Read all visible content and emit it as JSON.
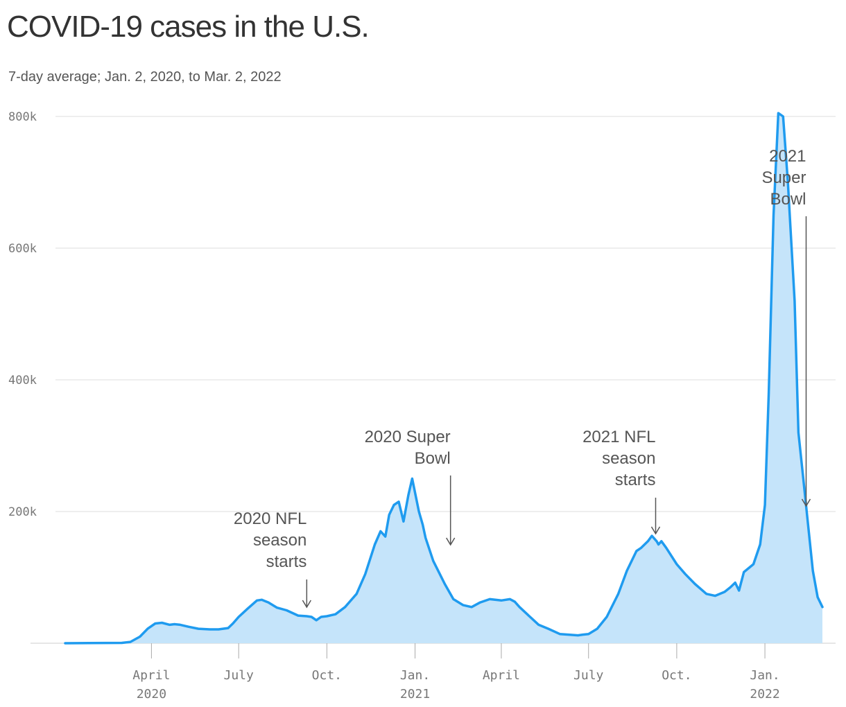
{
  "title": "COVID-19 cases in the U.S.",
  "subtitle": "7-day average; Jan. 2, 2020, to Mar. 2, 2022",
  "colors": {
    "line": "#1f9bef",
    "fill": "#c5e4fa",
    "grid": "#dddddd",
    "text": "#333333"
  },
  "chart_data": {
    "type": "area",
    "ylim": [
      0,
      800000
    ],
    "yticks": [
      {
        "value": 200000,
        "label": "200k"
      },
      {
        "value": 400000,
        "label": "400k"
      },
      {
        "value": 600000,
        "label": "600k"
      },
      {
        "value": 800000,
        "label": "800k"
      }
    ],
    "xticks": [
      {
        "date": "2020-04-01",
        "label": "April",
        "year": "2020"
      },
      {
        "date": "2020-07-01",
        "label": "July",
        "year": ""
      },
      {
        "date": "2020-10-01",
        "label": "Oct.",
        "year": ""
      },
      {
        "date": "2021-01-01",
        "label": "Jan.",
        "year": "2021"
      },
      {
        "date": "2021-04-01",
        "label": "April",
        "year": ""
      },
      {
        "date": "2021-07-01",
        "label": "July",
        "year": ""
      },
      {
        "date": "2021-10-01",
        "label": "Oct.",
        "year": ""
      },
      {
        "date": "2022-01-01",
        "label": "Jan.",
        "year": "2022"
      }
    ],
    "series": [
      {
        "x": [
          "2020-01-02",
          "2020-03-01",
          "2020-03-10",
          "2020-03-20",
          "2020-03-28",
          "2020-04-05",
          "2020-04-12",
          "2020-04-20",
          "2020-04-25",
          "2020-05-01",
          "2020-05-10",
          "2020-05-20",
          "2020-06-01",
          "2020-06-10",
          "2020-06-20",
          "2020-06-25",
          "2020-07-01",
          "2020-07-10",
          "2020-07-20",
          "2020-07-25",
          "2020-08-01",
          "2020-08-10",
          "2020-08-20",
          "2020-09-01",
          "2020-09-10",
          "2020-09-15",
          "2020-09-20",
          "2020-09-25",
          "2020-10-01",
          "2020-10-10",
          "2020-10-20",
          "2020-11-01",
          "2020-11-10",
          "2020-11-20",
          "2020-11-26",
          "2020-12-01",
          "2020-12-05",
          "2020-12-10",
          "2020-12-15",
          "2020-12-20",
          "2020-12-25",
          "2020-12-29",
          "2021-01-05",
          "2021-01-09",
          "2021-01-12",
          "2021-01-20",
          "2021-02-01",
          "2021-02-10",
          "2021-02-20",
          "2021-03-01",
          "2021-03-10",
          "2021-03-20",
          "2021-04-01",
          "2021-04-10",
          "2021-04-15",
          "2021-04-20",
          "2021-05-01",
          "2021-05-10",
          "2021-05-20",
          "2021-06-01",
          "2021-06-10",
          "2021-06-20",
          "2021-06-25",
          "2021-07-01",
          "2021-07-10",
          "2021-07-20",
          "2021-08-01",
          "2021-08-10",
          "2021-08-20",
          "2021-08-25",
          "2021-09-01",
          "2021-09-05",
          "2021-09-10",
          "2021-09-12",
          "2021-09-15",
          "2021-09-20",
          "2021-10-01",
          "2021-10-10",
          "2021-10-20",
          "2021-11-01",
          "2021-11-10",
          "2021-11-20",
          "2021-11-26",
          "2021-12-01",
          "2021-12-05",
          "2021-12-10",
          "2021-12-20",
          "2021-12-27",
          "2022-01-01",
          "2022-01-05",
          "2022-01-10",
          "2022-01-15",
          "2022-01-20",
          "2022-01-25",
          "2022-02-01",
          "2022-02-05",
          "2022-02-10",
          "2022-02-15",
          "2022-02-20",
          "2022-02-25",
          "2022-03-02"
        ],
        "y": [
          0,
          500,
          2000,
          10000,
          22000,
          30000,
          31000,
          28000,
          29000,
          28000,
          25000,
          22000,
          21000,
          21000,
          23000,
          30000,
          40000,
          52000,
          65000,
          66000,
          62000,
          54000,
          50000,
          42000,
          41000,
          40000,
          35000,
          40000,
          41000,
          44000,
          55000,
          75000,
          105000,
          150000,
          170000,
          162000,
          195000,
          210000,
          215000,
          185000,
          225000,
          250000,
          200000,
          180000,
          160000,
          125000,
          90000,
          67000,
          58000,
          55000,
          62000,
          67000,
          65000,
          67000,
          63000,
          55000,
          40000,
          28000,
          22000,
          14000,
          13000,
          12000,
          13000,
          14000,
          22000,
          40000,
          75000,
          110000,
          140000,
          145000,
          155000,
          163000,
          155000,
          150000,
          155000,
          145000,
          120000,
          105000,
          90000,
          75000,
          72000,
          78000,
          85000,
          92000,
          80000,
          108000,
          120000,
          150000,
          210000,
          380000,
          650000,
          805000,
          800000,
          700000,
          520000,
          320000,
          250000,
          180000,
          110000,
          70000,
          55000
        ]
      }
    ],
    "annotations": [
      {
        "date": "2020-09-10",
        "lines": [
          "2020 NFL",
          "season",
          "starts"
        ]
      },
      {
        "date": "2021-02-07",
        "lines": [
          "2020 Super",
          "Bowl"
        ]
      },
      {
        "date": "2021-09-09",
        "lines": [
          "2021 NFL",
          "season",
          "starts"
        ]
      },
      {
        "date": "2022-02-13",
        "lines": [
          "2021",
          "Super",
          "Bowl"
        ]
      }
    ]
  }
}
